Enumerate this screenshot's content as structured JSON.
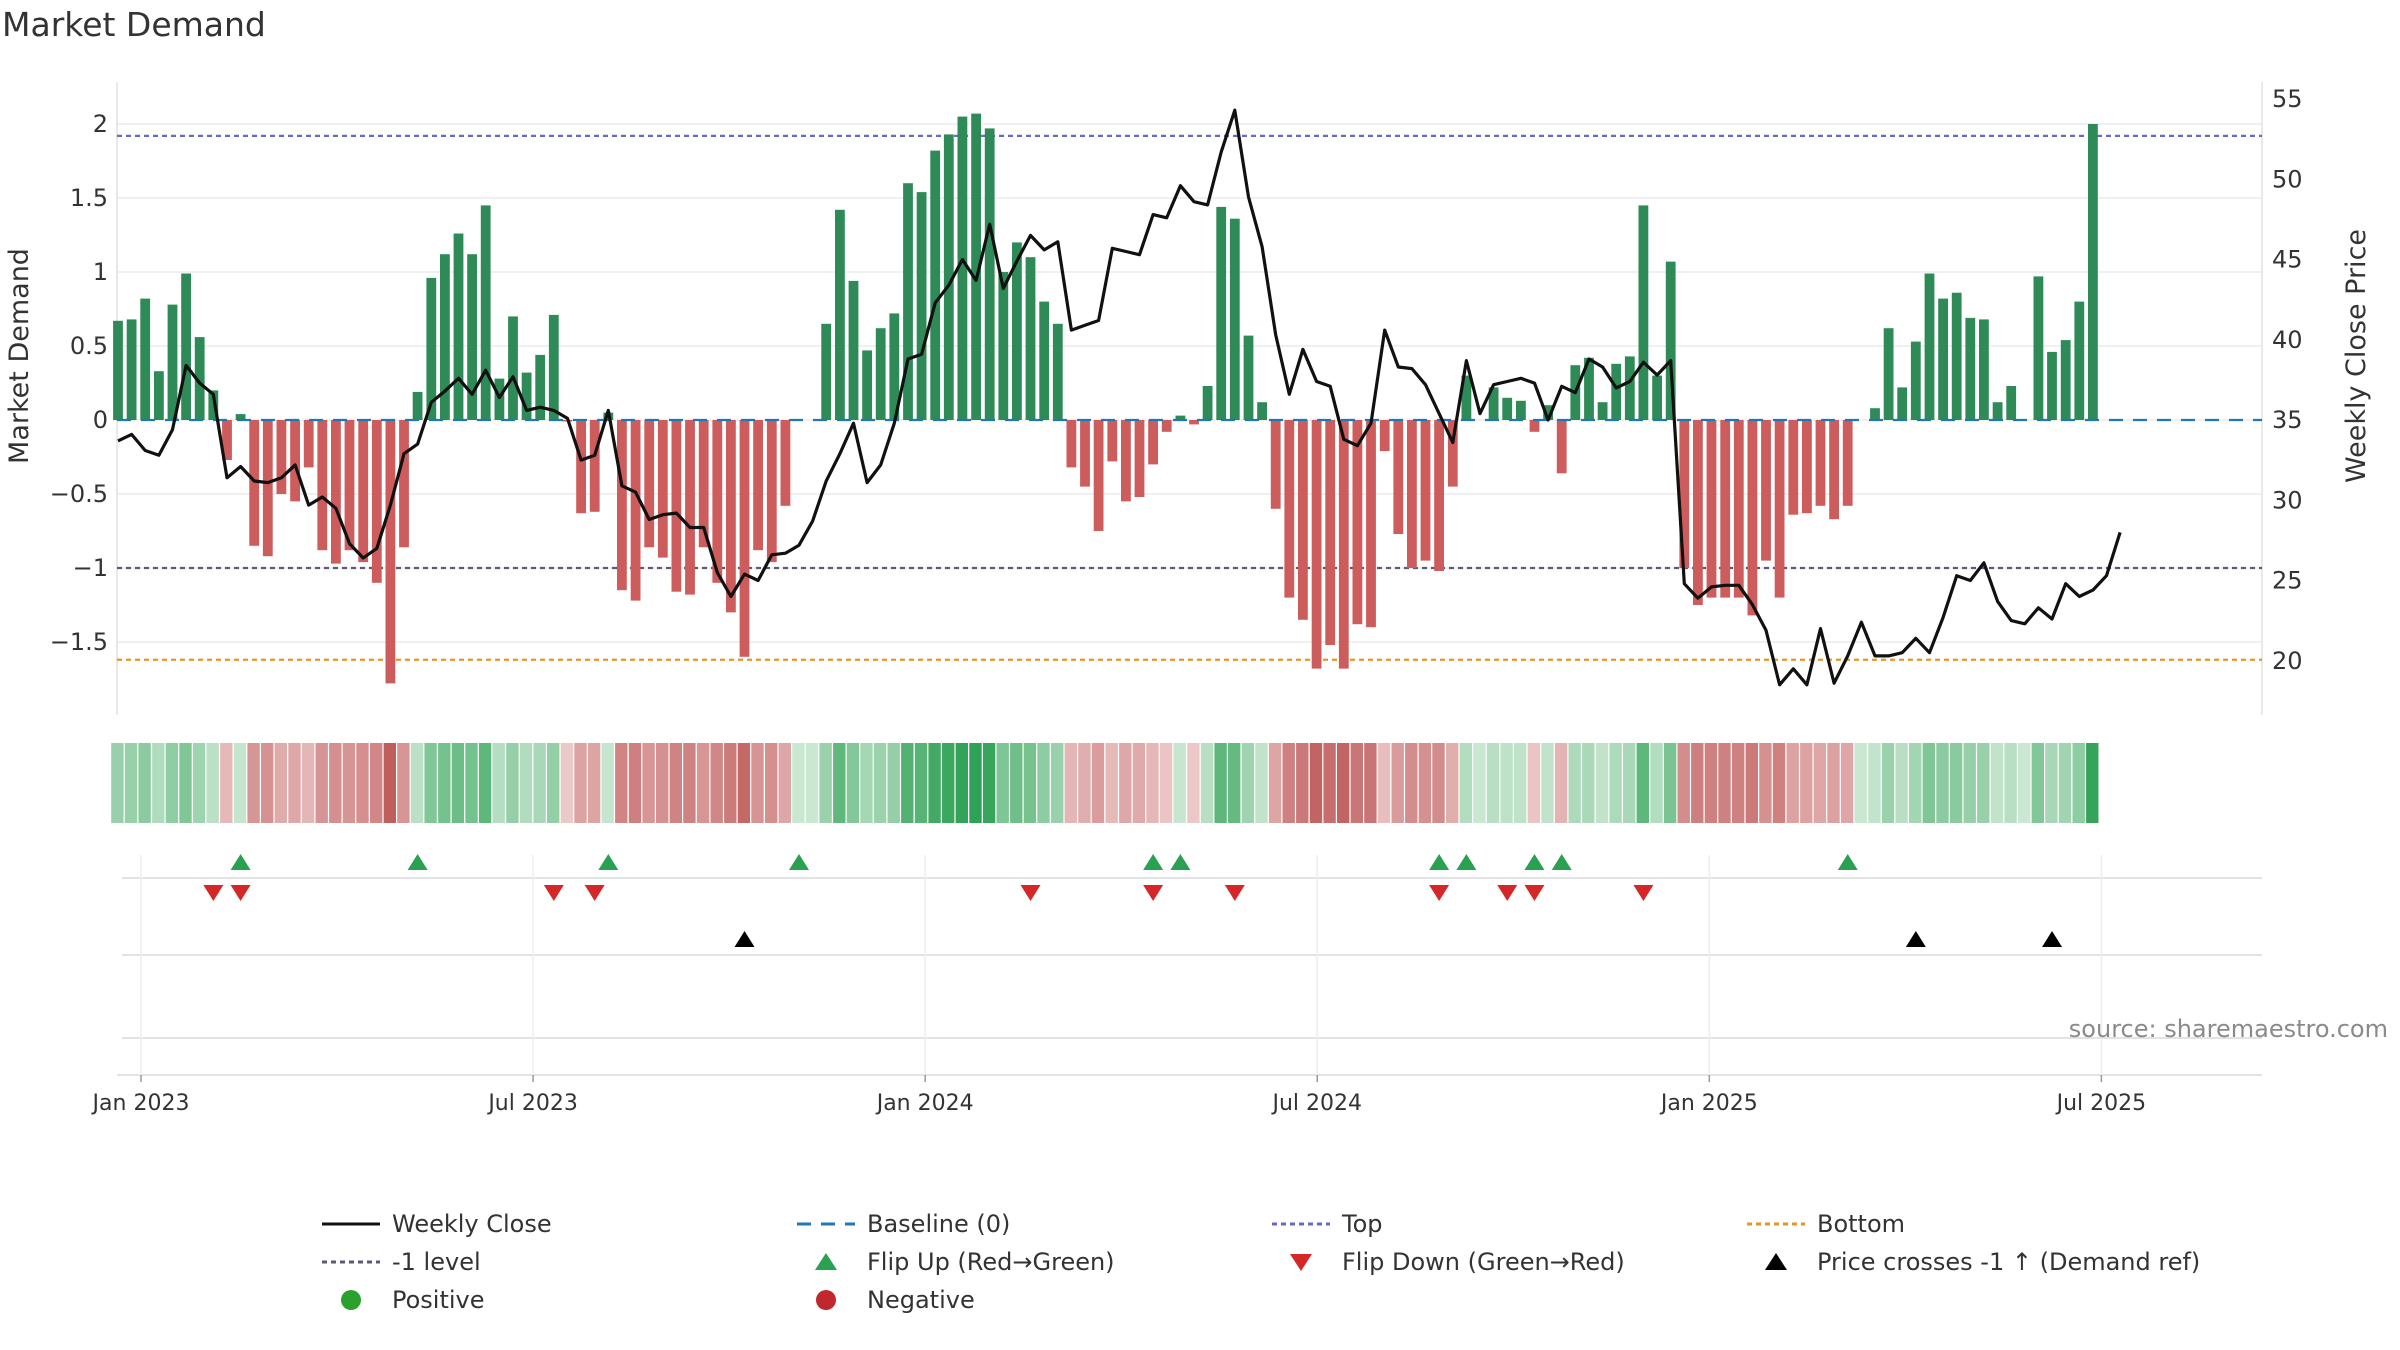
{
  "chart_data": {
    "type": "bar",
    "title": "Market Demand",
    "ylabel": "Market Demand",
    "y2label": "Weekly Close Price",
    "ylim": [
      -2.0,
      2.2
    ],
    "y2lim": [
      16,
      56
    ],
    "yticks": [
      2,
      1.5,
      1,
      0.5,
      0,
      -0.5,
      -1,
      -1.5
    ],
    "ytick_labels": [
      "2",
      "1.5",
      "1",
      "0.5",
      "0",
      "−0.5",
      "−1",
      "−1.5"
    ],
    "y2ticks": [
      55,
      50,
      45,
      40,
      35,
      30,
      25,
      20
    ],
    "xticks": [
      0,
      26,
      52,
      78,
      104,
      130
    ],
    "xtick_labels": [
      "Jan 2023",
      "Jul 2023",
      "Jan 2024",
      "Jul 2024",
      "Jan 2025",
      "Jul 2025"
    ],
    "reference_lines": {
      "top": 1.92,
      "minus_one": -1.0,
      "bottom": -1.62,
      "baseline": 0
    },
    "demand": [
      0.67,
      0.68,
      0.82,
      0.33,
      0.78,
      0.99,
      0.56,
      0.2,
      -0.27,
      0.04,
      -0.85,
      -0.92,
      -0.5,
      -0.55,
      -0.32,
      -0.88,
      -0.97,
      -0.88,
      -0.96,
      -1.1,
      -1.78,
      -0.86,
      0.19,
      0.96,
      1.12,
      1.26,
      1.12,
      1.45,
      0.28,
      0.7,
      0.32,
      0.44,
      0.71,
      -0.01,
      -0.63,
      -0.62,
      0.05,
      -1.15,
      -1.22,
      -0.86,
      -0.93,
      -1.16,
      -1.18,
      -0.86,
      -1.1,
      -1.3,
      -1.6,
      -0.88,
      -0.96,
      -0.58,
      0,
      0,
      0.65,
      1.42,
      0.94,
      0.47,
      0.62,
      0.72,
      1.6,
      1.54,
      1.82,
      1.93,
      2.05,
      2.07,
      1.97,
      1.0,
      1.2,
      1.1,
      0.8,
      0.65,
      -0.32,
      -0.45,
      -0.75,
      -0.28,
      -0.55,
      -0.52,
      -0.3,
      -0.08,
      0.03,
      -0.03,
      0.23,
      1.44,
      1.36,
      0.57,
      0.12,
      -0.6,
      -1.2,
      -1.35,
      -1.68,
      -1.52,
      -1.68,
      -1.38,
      -1.4,
      -0.21,
      -0.77,
      -1.0,
      -0.95,
      -1.02,
      -0.45,
      0.3,
      0,
      0.22,
      0.15,
      0.13,
      -0.08,
      0.1,
      -0.36,
      0.37,
      0.42,
      0.12,
      0.38,
      0.43,
      1.45,
      0.3,
      1.07,
      -1.0,
      -1.25,
      -1.2,
      -1.2,
      -1.2,
      -1.32,
      -0.95,
      -1.2,
      -0.64,
      -0.63,
      -0.58,
      -0.67,
      -0.58,
      0,
      0.08,
      0.62,
      0.22,
      0.53,
      0.99,
      0.82,
      0.86,
      0.69,
      0.68,
      0.12,
      0.23,
      0,
      0.97,
      0.46,
      0.54,
      0.8,
      2.0
    ],
    "weekly_close": [
      33.7,
      34.1,
      33.1,
      32.8,
      34.4,
      38.4,
      37.3,
      36.6,
      31.4,
      32.1,
      31.2,
      31.1,
      31.4,
      32.2,
      29.7,
      30.2,
      29.5,
      27.3,
      26.4,
      27.0,
      29.7,
      32.9,
      33.5,
      36.1,
      36.8,
      37.6,
      36.6,
      38.1,
      36.4,
      37.7,
      35.6,
      35.8,
      35.6,
      35.1,
      32.5,
      32.8,
      35.6,
      30.9,
      30.5,
      28.8,
      29.1,
      29.2,
      28.3,
      28.3,
      25.5,
      24.0,
      25.4,
      25.0,
      26.6,
      26.7,
      27.2,
      28.7,
      31.2,
      32.9,
      34.8,
      31.1,
      32.2,
      34.8,
      38.8,
      39.1,
      42.3,
      43.4,
      45.0,
      43.7,
      47.2,
      43.2,
      44.9,
      46.5,
      45.6,
      46.1,
      40.6,
      40.9,
      41.2,
      45.7,
      45.5,
      45.3,
      47.8,
      47.6,
      49.6,
      48.6,
      48.4,
      51.7,
      54.3,
      48.9,
      45.8,
      40.3,
      36.6,
      39.4,
      37.4,
      37.1,
      33.8,
      33.4,
      34.8,
      40.6,
      38.3,
      38.2,
      37.2,
      35.4,
      33.6,
      38.7,
      35.4,
      37.2,
      37.4,
      37.6,
      37.3,
      35.0,
      37.1,
      36.7,
      38.8,
      38.3,
      37.0,
      37.4,
      38.6,
      37.8,
      38.7,
      24.8,
      23.9,
      24.6,
      24.7,
      24.7,
      23.5,
      21.9,
      18.5,
      19.5,
      18.5,
      22.0,
      18.6,
      20.3,
      22.4,
      20.3,
      20.3,
      20.5,
      21.4,
      20.5,
      22.7,
      25.3,
      25.0,
      26.1,
      23.7,
      22.5,
      22.3,
      23.3,
      22.6,
      24.8,
      24.0,
      24.4,
      25.3,
      28.0
    ],
    "strip": {
      "positive_color": "#2e8b57",
      "negative_color": "#cd5c5c"
    },
    "flip_up_weeks": [
      9,
      22,
      36,
      50,
      76,
      78,
      97,
      99,
      104,
      106,
      127
    ],
    "flip_down_weeks": [
      7,
      9,
      32,
      35,
      67,
      76,
      82,
      97,
      102,
      104,
      112
    ],
    "price_cross_weeks": [
      46,
      132,
      142
    ],
    "source": "source: sharemaestro.com",
    "legend": {
      "weekly_close": "Weekly Close",
      "baseline": "Baseline (0)",
      "top": "Top",
      "bottom": "Bottom",
      "minus_one": "-1 level",
      "flip_up": "Flip Up (Red→Green)",
      "flip_down": "Flip Down (Green→Red)",
      "price_cross": "Price crosses -1 ↑ (Demand ref)",
      "positive": "Positive",
      "negative": "Negative"
    },
    "colors": {
      "bar_positive": "#2e8b57",
      "bar_negative": "#cd5c5c",
      "price": "#111111",
      "top": "#6a6abf",
      "minus_one": "#5a5a78",
      "bottom": "#e69628",
      "baseline": "#1f77b4",
      "flip_up": "#2aa052",
      "flip_down": "#d62728",
      "cross": "#000000",
      "positive_dot": "#2ca02c",
      "negative_dot": "#c0282d"
    }
  }
}
